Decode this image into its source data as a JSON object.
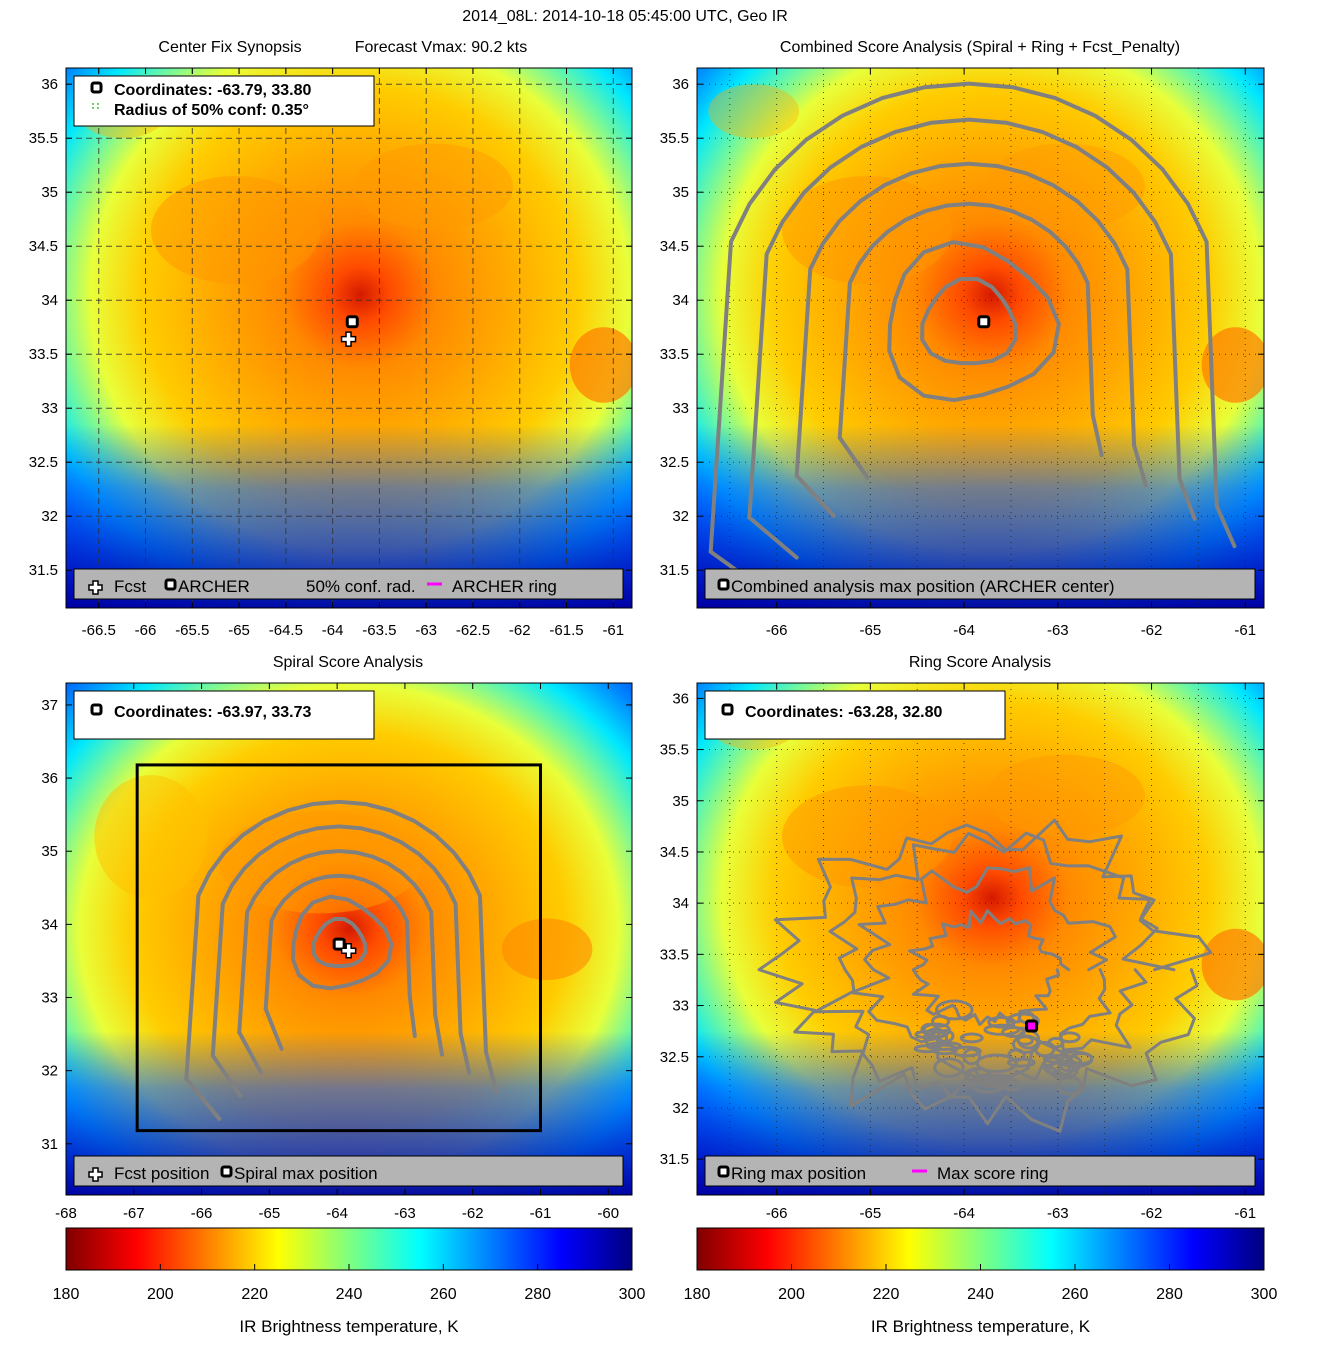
{
  "figure": {
    "title": "2014_08L: 2014-10-18 05:45:00 UTC, Geo IR"
  },
  "colors": {
    "ring_contour": "#808080",
    "archer_ring": "#ff00ff",
    "marker_border": "#000000",
    "legend_bg": "#b4b4b4",
    "cmap": [
      "#7f0000",
      "#ff0000",
      "#ff7f00",
      "#ffff00",
      "#7fff7f",
      "#00ffff",
      "#007fff",
      "#0000ff",
      "#00007f"
    ]
  },
  "chart_data": [
    {
      "id": "center-fix",
      "type": "heatmap",
      "title": "Center Fix Synopsis",
      "subtitle": "Forecast Vmax: 90.2 kts",
      "xlim": [
        -66.85,
        -60.8
      ],
      "ylim": [
        31.15,
        36.15
      ],
      "xticks": [
        -66.5,
        -66,
        -65.5,
        -65,
        -64.5,
        -64,
        -63.5,
        -63,
        -62.5,
        -62,
        -61.5,
        -61
      ],
      "xtick_labels": [
        "-66.5",
        "-66",
        "-65.5",
        "-65",
        "-64.5",
        "-64",
        "-63.5",
        "-63",
        "-62.5",
        "-62",
        "-61.5",
        "-61"
      ],
      "yticks": [
        31.5,
        32,
        32.5,
        33,
        33.5,
        34,
        34.5,
        35,
        35.5,
        36
      ],
      "ytick_labels": [
        "31.5",
        "32",
        "32.5",
        "33",
        "33.5",
        "34",
        "34.5",
        "35",
        "35.5",
        "36"
      ],
      "grid": "dashed",
      "info_lines": [
        "Coordinates: -63.79, 33.80",
        "Radius of 50% conf: 0.35°"
      ],
      "legend": [
        "Fcst",
        "ARCHER",
        "50% conf. rad.",
        "ARCHER ring"
      ],
      "fcst": {
        "x": -63.83,
        "y": 33.64
      },
      "archer": {
        "x": -63.79,
        "y": 33.8
      },
      "contours": false
    },
    {
      "id": "combined",
      "type": "heatmap",
      "title": "Combined Score Analysis (Spiral + Ring + Fcst_Penalty)",
      "xlim": [
        -66.85,
        -60.8
      ],
      "ylim": [
        31.15,
        36.15
      ],
      "xticks": [
        -66,
        -65,
        -64,
        -63,
        -62,
        -61
      ],
      "xtick_labels": [
        "-66",
        "-65",
        "-64",
        "-63",
        "-62",
        "-61"
      ],
      "yticks": [
        31.5,
        32,
        32.5,
        33,
        33.5,
        34,
        34.5,
        35,
        35.5,
        36
      ],
      "ytick_labels": [
        "31.5",
        "32",
        "32.5",
        "33",
        "33.5",
        "34",
        "34.5",
        "35",
        "35.5",
        "36"
      ],
      "grid": "dotted",
      "info_lines": [],
      "legend": [
        "Combined analysis max position (ARCHER center)"
      ],
      "archer": {
        "x": -63.79,
        "y": 33.8
      },
      "contours": true,
      "contour_center": {
        "x": -63.95,
        "y": 33.78
      }
    },
    {
      "id": "spiral",
      "type": "heatmap",
      "title": "Spiral Score Analysis",
      "xlim": [
        -68,
        -59.65
      ],
      "ylim": [
        30.3,
        37.3
      ],
      "xticks": [
        -68,
        -67,
        -66,
        -65,
        -64,
        -63,
        -62,
        -61,
        -60
      ],
      "xtick_labels": [
        "-68",
        "-67",
        "-66",
        "-65",
        "-64",
        "-63",
        "-62",
        "-61",
        "-60"
      ],
      "yticks": [
        31,
        32,
        33,
        34,
        35,
        36,
        37
      ],
      "ytick_labels": [
        "31",
        "32",
        "33",
        "34",
        "35",
        "36",
        "37"
      ],
      "grid": "none",
      "info_lines": [
        "Coordinates: -63.97, 33.73"
      ],
      "legend": [
        "Fcst position",
        "Spiral max position"
      ],
      "fcst": {
        "x": -63.83,
        "y": 33.64
      },
      "spiral_max": {
        "x": -63.97,
        "y": 33.73
      },
      "search_box": {
        "x1": -66.95,
        "x2": -61.0,
        "y1": 31.18,
        "y2": 36.18
      },
      "contours": true,
      "contour_center": {
        "x": -63.97,
        "y": 33.73
      }
    },
    {
      "id": "ring",
      "type": "heatmap",
      "title": "Ring Score Analysis",
      "xlim": [
        -66.85,
        -60.8
      ],
      "ylim": [
        31.15,
        36.15
      ],
      "xticks": [
        -66,
        -65,
        -64,
        -63,
        -62,
        -61
      ],
      "xtick_labels": [
        "-66",
        "-65",
        "-64",
        "-63",
        "-62",
        "-61"
      ],
      "yticks": [
        31.5,
        32,
        32.5,
        33,
        33.5,
        34,
        34.5,
        35,
        35.5,
        36
      ],
      "ytick_labels": [
        "31.5",
        "32",
        "32.5",
        "33",
        "33.5",
        "34",
        "34.5",
        "35",
        "35.5",
        "36"
      ],
      "grid": "dotted",
      "info_lines": [
        "Coordinates: -63.28, 32.80"
      ],
      "legend": [
        "Ring max position",
        "Max score ring"
      ],
      "ring_max": {
        "x": -63.28,
        "y": 32.8
      },
      "contours": "noisy"
    }
  ],
  "colorbars": [
    {
      "id": "left",
      "top_ticks": [
        "-68",
        "-67",
        "-66",
        "-65",
        "-64",
        "-63",
        "-62",
        "-61",
        "-60"
      ],
      "top_values": [
        -68,
        -67,
        -66,
        -65,
        -64,
        -63,
        -62,
        -61,
        -60
      ],
      "top_range": [
        -68,
        -59.65
      ],
      "labels": [
        "180",
        "200",
        "220",
        "240",
        "260",
        "280",
        "300"
      ],
      "values": [
        180,
        200,
        220,
        240,
        260,
        280,
        300
      ],
      "range": [
        180,
        300
      ],
      "xlabel": "IR Brightness temperature, K"
    },
    {
      "id": "right",
      "top_ticks": [
        "-66",
        "-65",
        "-64",
        "-63",
        "-62",
        "-61"
      ],
      "top_values": [
        -66,
        -65,
        -64,
        -63,
        -62,
        -61
      ],
      "top_range": [
        -66.85,
        -60.8
      ],
      "labels": [
        "180",
        "200",
        "220",
        "240",
        "260",
        "280",
        "300"
      ],
      "values": [
        180,
        200,
        220,
        240,
        260,
        280,
        300
      ],
      "range": [
        180,
        300
      ],
      "xlabel": "IR Brightness temperature, K"
    }
  ]
}
